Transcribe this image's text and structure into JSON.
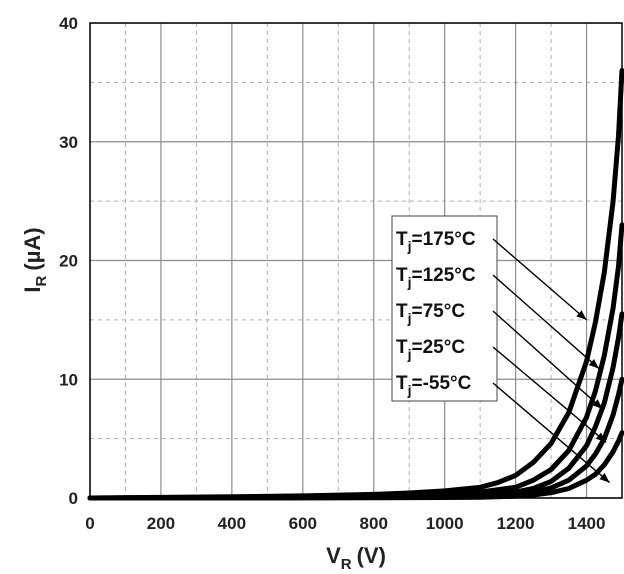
{
  "chart_data": {
    "type": "line",
    "title": "",
    "xlabel": {
      "main": "V",
      "sub": "R",
      "unit": "(V)"
    },
    "ylabel": {
      "main": "I",
      "sub": "R",
      "unit": "(µA)"
    },
    "xlim": [
      0,
      1500
    ],
    "ylim": [
      0,
      40
    ],
    "x_ticks": [
      "0",
      "200",
      "400",
      "600",
      "800",
      "1000",
      "1200",
      "1400"
    ],
    "y_ticks": [
      "0",
      "10",
      "20",
      "30",
      "40"
    ],
    "grid": true,
    "minor_grid": true,
    "legend_placement": "inside-right",
    "line_color": "#000000",
    "series": [
      {
        "name": "Tj=175°C",
        "label_main": "T",
        "label_sub": "j",
        "label_rest": "=175°C",
        "x": [
          0,
          200,
          400,
          600,
          800,
          900,
          1000,
          1100,
          1150,
          1200,
          1250,
          1300,
          1350,
          1400,
          1425,
          1450,
          1475,
          1490,
          1500
        ],
        "y": [
          0,
          0.05,
          0.1,
          0.18,
          0.3,
          0.42,
          0.6,
          0.9,
          1.3,
          1.9,
          3.0,
          4.6,
          7.2,
          11.5,
          14.8,
          19.0,
          25.0,
          30.5,
          36.0
        ]
      },
      {
        "name": "Tj=125°C",
        "label_main": "T",
        "label_sub": "j",
        "label_rest": "=125°C",
        "x": [
          0,
          200,
          400,
          600,
          800,
          1000,
          1100,
          1200,
          1250,
          1300,
          1350,
          1400,
          1425,
          1450,
          1475,
          1490,
          1500
        ],
        "y": [
          0,
          0.02,
          0.04,
          0.08,
          0.14,
          0.3,
          0.5,
          0.9,
          1.5,
          2.4,
          4.0,
          6.8,
          9.0,
          12.0,
          16.0,
          19.5,
          23.0
        ]
      },
      {
        "name": "Tj=75°C",
        "label_main": "T",
        "label_sub": "j",
        "label_rest": "=75°C",
        "x": [
          0,
          400,
          800,
          1000,
          1100,
          1200,
          1250,
          1300,
          1350,
          1400,
          1425,
          1450,
          1475,
          1490,
          1500
        ],
        "y": [
          0,
          0.02,
          0.08,
          0.15,
          0.25,
          0.5,
          0.8,
          1.4,
          2.5,
          4.4,
          6.0,
          8.0,
          11.0,
          13.5,
          15.5
        ]
      },
      {
        "name": "Tj=25°C",
        "label_main": "T",
        "label_sub": "j",
        "label_rest": "=25°C",
        "x": [
          0,
          400,
          800,
          1000,
          1100,
          1200,
          1250,
          1300,
          1350,
          1400,
          1425,
          1450,
          1475,
          1490,
          1500
        ],
        "y": [
          0,
          0.01,
          0.04,
          0.08,
          0.14,
          0.3,
          0.5,
          0.85,
          1.5,
          2.7,
          3.7,
          5.0,
          7.0,
          8.7,
          10.0
        ]
      },
      {
        "name": "Tj=-55°C",
        "label_main": "T",
        "label_sub": "j",
        "label_rest": "=-55°C",
        "x": [
          0,
          400,
          800,
          1000,
          1100,
          1200,
          1250,
          1300,
          1350,
          1400,
          1425,
          1450,
          1475,
          1490,
          1500
        ],
        "y": [
          0,
          0.0,
          0.02,
          0.04,
          0.07,
          0.15,
          0.25,
          0.45,
          0.8,
          1.5,
          2.0,
          2.8,
          3.9,
          4.8,
          5.5
        ]
      }
    ],
    "callout_targets": [
      {
        "x": 1400,
        "y": 15.0
      },
      {
        "x": 1435,
        "y": 10.9
      },
      {
        "x": 1445,
        "y": 7.5
      },
      {
        "x": 1455,
        "y": 4.7
      },
      {
        "x": 1465,
        "y": 1.3
      }
    ]
  }
}
